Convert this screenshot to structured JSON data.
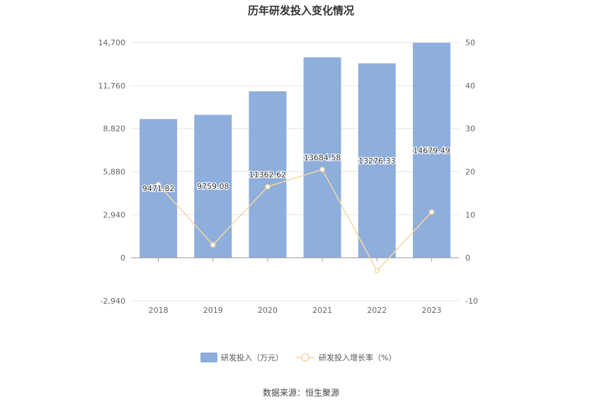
{
  "chart_data": {
    "type": "bar",
    "title": "历年研发投入变化情况",
    "categories": [
      "2018",
      "2019",
      "2020",
      "2021",
      "2022",
      "2023"
    ],
    "series": [
      {
        "name": "研发投入（万元）",
        "type": "bar",
        "axis": "left",
        "color": "#8eaedb",
        "values": [
          9471.82,
          9759.08,
          11362.62,
          13684.58,
          13276.33,
          14679.49
        ],
        "labels": [
          "9471.82",
          "9759.08",
          "11362.62",
          "13684.58",
          "13276.33",
          "14679.49"
        ]
      },
      {
        "name": "研发投入增长率（%）",
        "type": "line",
        "axis": "right",
        "color": "#f6d7a1",
        "values": [
          17.0,
          3.0,
          16.5,
          20.5,
          -3.0,
          10.6
        ]
      }
    ],
    "y_left": {
      "ticks": [
        "14,700",
        "11,760",
        "8,820",
        "5,880",
        "2,940",
        "0",
        "-2,940"
      ],
      "min": -2940,
      "max": 14700
    },
    "y_right": {
      "ticks": [
        "50",
        "40",
        "30",
        "20",
        "10",
        "0",
        "-10"
      ],
      "min": -10,
      "max": 50
    },
    "grid": true,
    "legend_position": "bottom"
  },
  "source_text": "数据来源：恒生聚源"
}
